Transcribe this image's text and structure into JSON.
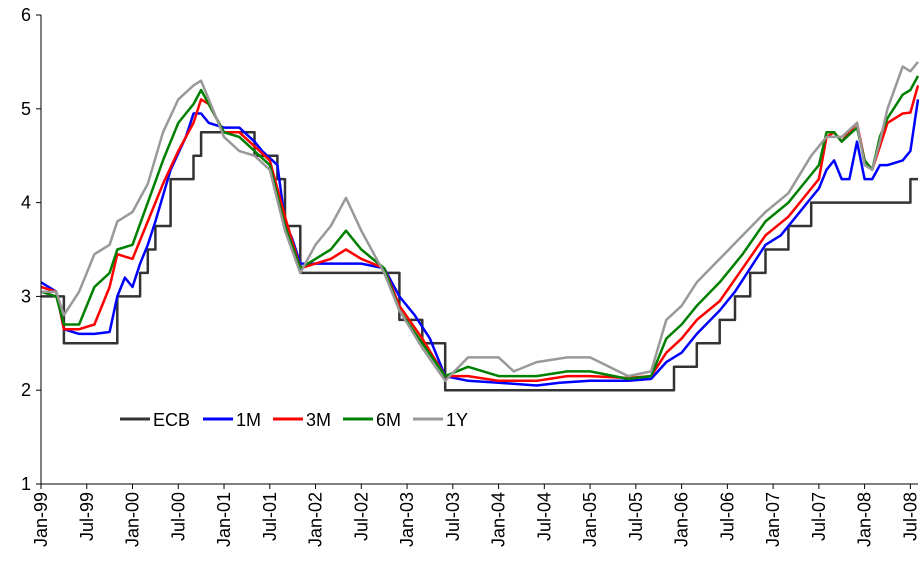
{
  "chart_data": {
    "type": "line",
    "title": "",
    "xlabel": "",
    "ylabel": "",
    "ylim": [
      1,
      6
    ],
    "yticks": [
      "1",
      "2",
      "3",
      "4",
      "5",
      "6"
    ],
    "xlim": [
      "1999-01",
      "2008-08"
    ],
    "xticks": [
      {
        "date": "1999-01",
        "label": "Jan-99"
      },
      {
        "date": "1999-07",
        "label": "Jul-99"
      },
      {
        "date": "2000-01",
        "label": "Jan-00"
      },
      {
        "date": "2000-07",
        "label": "Jul-00"
      },
      {
        "date": "2001-01",
        "label": "Jan-01"
      },
      {
        "date": "2001-07",
        "label": "Jul-01"
      },
      {
        "date": "2002-01",
        "label": "Jan-02"
      },
      {
        "date": "2002-07",
        "label": "Jul-02"
      },
      {
        "date": "2003-01",
        "label": "Jan-03"
      },
      {
        "date": "2003-07",
        "label": "Jul-03"
      },
      {
        "date": "2004-01",
        "label": "Jan-04"
      },
      {
        "date": "2004-07",
        "label": "Jul-04"
      },
      {
        "date": "2005-01",
        "label": "Jan-05"
      },
      {
        "date": "2005-07",
        "label": "Jul-05"
      },
      {
        "date": "2006-01",
        "label": "Jan-06"
      },
      {
        "date": "2006-07",
        "label": "Jul-06"
      },
      {
        "date": "2007-01",
        "label": "Jan-07"
      },
      {
        "date": "2007-07",
        "label": "Jul-07"
      },
      {
        "date": "2008-01",
        "label": "Jan-08"
      },
      {
        "date": "2008-07",
        "label": "Jul-08"
      }
    ],
    "grid": false,
    "legend": "lower-left, horizontal",
    "series": [
      {
        "name": "ECB",
        "color": "#333333",
        "step": true,
        "points": [
          [
            "1999-01",
            3.0
          ],
          [
            "1999-04",
            2.5
          ],
          [
            "1999-11",
            3.0
          ],
          [
            "2000-02",
            3.25
          ],
          [
            "2000-03",
            3.5
          ],
          [
            "2000-04",
            3.75
          ],
          [
            "2000-06",
            4.25
          ],
          [
            "2000-09",
            4.5
          ],
          [
            "2000-10",
            4.75
          ],
          [
            "2001-05",
            4.5
          ],
          [
            "2001-08",
            4.25
          ],
          [
            "2001-09",
            3.75
          ],
          [
            "2001-11",
            3.25
          ],
          [
            "2002-12",
            2.75
          ],
          [
            "2003-03",
            2.5
          ],
          [
            "2003-06",
            2.0
          ],
          [
            "2005-12",
            2.25
          ],
          [
            "2006-03",
            2.5
          ],
          [
            "2006-06",
            2.75
          ],
          [
            "2006-08",
            3.0
          ],
          [
            "2006-10",
            3.25
          ],
          [
            "2006-12",
            3.5
          ],
          [
            "2007-03",
            3.75
          ],
          [
            "2007-06",
            4.0
          ],
          [
            "2008-07",
            4.25
          ],
          [
            "2008-08",
            4.25
          ]
        ]
      },
      {
        "name": "1M",
        "color": "#0000ff",
        "step": false,
        "points": [
          [
            "1999-01",
            3.15
          ],
          [
            "1999-03",
            3.05
          ],
          [
            "1999-04",
            2.65
          ],
          [
            "1999-06",
            2.6
          ],
          [
            "1999-08",
            2.6
          ],
          [
            "1999-10",
            2.62
          ],
          [
            "1999-11",
            3.0
          ],
          [
            "1999-12",
            3.2
          ],
          [
            "2000-01",
            3.1
          ],
          [
            "2000-02",
            3.35
          ],
          [
            "2000-03",
            3.55
          ],
          [
            "2000-04",
            3.8
          ],
          [
            "2000-06",
            4.35
          ],
          [
            "2000-08",
            4.7
          ],
          [
            "2000-09",
            4.95
          ],
          [
            "2000-10",
            4.95
          ],
          [
            "2000-11",
            4.85
          ],
          [
            "2001-01",
            4.8
          ],
          [
            "2001-03",
            4.8
          ],
          [
            "2001-05",
            4.65
          ],
          [
            "2001-06",
            4.55
          ],
          [
            "2001-08",
            4.4
          ],
          [
            "2001-09",
            3.8
          ],
          [
            "2001-10",
            3.6
          ],
          [
            "2001-11",
            3.35
          ],
          [
            "2002-01",
            3.35
          ],
          [
            "2002-04",
            3.35
          ],
          [
            "2002-07",
            3.35
          ],
          [
            "2002-10",
            3.3
          ],
          [
            "2002-12",
            3.0
          ],
          [
            "2003-02",
            2.8
          ],
          [
            "2003-04",
            2.55
          ],
          [
            "2003-06",
            2.15
          ],
          [
            "2003-09",
            2.1
          ],
          [
            "2004-01",
            2.08
          ],
          [
            "2004-06",
            2.05
          ],
          [
            "2004-09",
            2.08
          ],
          [
            "2005-01",
            2.1
          ],
          [
            "2005-06",
            2.1
          ],
          [
            "2005-09",
            2.12
          ],
          [
            "2005-11",
            2.3
          ],
          [
            "2006-01",
            2.4
          ],
          [
            "2006-03",
            2.6
          ],
          [
            "2006-06",
            2.85
          ],
          [
            "2006-08",
            3.05
          ],
          [
            "2006-10",
            3.3
          ],
          [
            "2006-12",
            3.55
          ],
          [
            "2007-02",
            3.65
          ],
          [
            "2007-04",
            3.85
          ],
          [
            "2007-06",
            4.05
          ],
          [
            "2007-07",
            4.15
          ],
          [
            "2007-08",
            4.35
          ],
          [
            "2007-09",
            4.45
          ],
          [
            "2007-10",
            4.25
          ],
          [
            "2007-11",
            4.25
          ],
          [
            "2007-12",
            4.65
          ],
          [
            "2008-01",
            4.25
          ],
          [
            "2008-02",
            4.25
          ],
          [
            "2008-03",
            4.4
          ],
          [
            "2008-04",
            4.4
          ],
          [
            "2008-06",
            4.45
          ],
          [
            "2008-07",
            4.55
          ],
          [
            "2008-08",
            5.1
          ]
        ]
      },
      {
        "name": "3M",
        "color": "#ff0000",
        "step": false,
        "points": [
          [
            "1999-01",
            3.1
          ],
          [
            "1999-03",
            3.05
          ],
          [
            "1999-04",
            2.65
          ],
          [
            "1999-06",
            2.65
          ],
          [
            "1999-08",
            2.7
          ],
          [
            "1999-10",
            3.1
          ],
          [
            "1999-11",
            3.45
          ],
          [
            "2000-01",
            3.4
          ],
          [
            "2000-03",
            3.8
          ],
          [
            "2000-05",
            4.2
          ],
          [
            "2000-07",
            4.55
          ],
          [
            "2000-09",
            4.85
          ],
          [
            "2000-10",
            5.1
          ],
          [
            "2000-11",
            5.05
          ],
          [
            "2001-01",
            4.75
          ],
          [
            "2001-03",
            4.75
          ],
          [
            "2001-05",
            4.6
          ],
          [
            "2001-07",
            4.45
          ],
          [
            "2001-09",
            3.85
          ],
          [
            "2001-11",
            3.3
          ],
          [
            "2002-01",
            3.35
          ],
          [
            "2002-03",
            3.4
          ],
          [
            "2002-05",
            3.5
          ],
          [
            "2002-07",
            3.4
          ],
          [
            "2002-10",
            3.3
          ],
          [
            "2002-12",
            2.9
          ],
          [
            "2003-03",
            2.55
          ],
          [
            "2003-06",
            2.15
          ],
          [
            "2003-09",
            2.15
          ],
          [
            "2004-01",
            2.1
          ],
          [
            "2004-06",
            2.1
          ],
          [
            "2004-10",
            2.15
          ],
          [
            "2005-01",
            2.15
          ],
          [
            "2005-06",
            2.13
          ],
          [
            "2005-09",
            2.15
          ],
          [
            "2005-11",
            2.4
          ],
          [
            "2006-01",
            2.55
          ],
          [
            "2006-03",
            2.75
          ],
          [
            "2006-06",
            2.95
          ],
          [
            "2006-09",
            3.3
          ],
          [
            "2006-12",
            3.65
          ],
          [
            "2007-03",
            3.85
          ],
          [
            "2007-06",
            4.15
          ],
          [
            "2007-07",
            4.25
          ],
          [
            "2007-08",
            4.7
          ],
          [
            "2007-09",
            4.75
          ],
          [
            "2007-10",
            4.65
          ],
          [
            "2007-12",
            4.85
          ],
          [
            "2008-01",
            4.45
          ],
          [
            "2008-02",
            4.35
          ],
          [
            "2008-03",
            4.6
          ],
          [
            "2008-04",
            4.85
          ],
          [
            "2008-06",
            4.95
          ],
          [
            "2008-07",
            4.96
          ],
          [
            "2008-08",
            5.25
          ]
        ]
      },
      {
        "name": "6M",
        "color": "#008000",
        "step": false,
        "points": [
          [
            "1999-01",
            3.05
          ],
          [
            "1999-03",
            3.0
          ],
          [
            "1999-04",
            2.7
          ],
          [
            "1999-06",
            2.7
          ],
          [
            "1999-08",
            3.1
          ],
          [
            "1999-10",
            3.25
          ],
          [
            "1999-11",
            3.5
          ],
          [
            "2000-01",
            3.55
          ],
          [
            "2000-03",
            4.0
          ],
          [
            "2000-05",
            4.45
          ],
          [
            "2000-07",
            4.85
          ],
          [
            "2000-09",
            5.05
          ],
          [
            "2000-10",
            5.2
          ],
          [
            "2000-11",
            5.05
          ],
          [
            "2001-01",
            4.75
          ],
          [
            "2001-03",
            4.7
          ],
          [
            "2001-05",
            4.55
          ],
          [
            "2001-07",
            4.4
          ],
          [
            "2001-09",
            3.75
          ],
          [
            "2001-11",
            3.3
          ],
          [
            "2002-01",
            3.4
          ],
          [
            "2002-03",
            3.5
          ],
          [
            "2002-05",
            3.7
          ],
          [
            "2002-07",
            3.5
          ],
          [
            "2002-10",
            3.3
          ],
          [
            "2002-12",
            2.85
          ],
          [
            "2003-03",
            2.5
          ],
          [
            "2003-06",
            2.15
          ],
          [
            "2003-09",
            2.25
          ],
          [
            "2004-01",
            2.15
          ],
          [
            "2004-06",
            2.15
          ],
          [
            "2004-10",
            2.2
          ],
          [
            "2005-01",
            2.2
          ],
          [
            "2005-06",
            2.12
          ],
          [
            "2005-09",
            2.15
          ],
          [
            "2005-11",
            2.55
          ],
          [
            "2006-01",
            2.7
          ],
          [
            "2006-03",
            2.9
          ],
          [
            "2006-06",
            3.15
          ],
          [
            "2006-09",
            3.45
          ],
          [
            "2006-12",
            3.8
          ],
          [
            "2007-03",
            4.0
          ],
          [
            "2007-06",
            4.3
          ],
          [
            "2007-07",
            4.4
          ],
          [
            "2007-08",
            4.75
          ],
          [
            "2007-09",
            4.75
          ],
          [
            "2007-10",
            4.65
          ],
          [
            "2007-12",
            4.8
          ],
          [
            "2008-01",
            4.45
          ],
          [
            "2008-02",
            4.35
          ],
          [
            "2008-03",
            4.7
          ],
          [
            "2008-04",
            4.9
          ],
          [
            "2008-06",
            5.15
          ],
          [
            "2008-07",
            5.2
          ],
          [
            "2008-08",
            5.35
          ]
        ]
      },
      {
        "name": "1Y",
        "color": "#999999",
        "step": false,
        "points": [
          [
            "1999-01",
            3.05
          ],
          [
            "1999-03",
            3.05
          ],
          [
            "1999-04",
            2.8
          ],
          [
            "1999-06",
            3.05
          ],
          [
            "1999-08",
            3.45
          ],
          [
            "1999-10",
            3.55
          ],
          [
            "1999-11",
            3.8
          ],
          [
            "2000-01",
            3.9
          ],
          [
            "2000-03",
            4.2
          ],
          [
            "2000-05",
            4.75
          ],
          [
            "2000-07",
            5.1
          ],
          [
            "2000-09",
            5.25
          ],
          [
            "2000-10",
            5.3
          ],
          [
            "2000-11",
            5.1
          ],
          [
            "2001-01",
            4.7
          ],
          [
            "2001-03",
            4.55
          ],
          [
            "2001-05",
            4.5
          ],
          [
            "2001-07",
            4.35
          ],
          [
            "2001-09",
            3.7
          ],
          [
            "2001-11",
            3.25
          ],
          [
            "2002-01",
            3.55
          ],
          [
            "2002-03",
            3.75
          ],
          [
            "2002-05",
            4.05
          ],
          [
            "2002-07",
            3.7
          ],
          [
            "2002-10",
            3.25
          ],
          [
            "2002-12",
            2.85
          ],
          [
            "2003-03",
            2.45
          ],
          [
            "2003-06",
            2.1
          ],
          [
            "2003-09",
            2.35
          ],
          [
            "2004-01",
            2.35
          ],
          [
            "2004-03",
            2.2
          ],
          [
            "2004-06",
            2.3
          ],
          [
            "2004-10",
            2.35
          ],
          [
            "2005-01",
            2.35
          ],
          [
            "2005-06",
            2.15
          ],
          [
            "2005-09",
            2.2
          ],
          [
            "2005-11",
            2.75
          ],
          [
            "2006-01",
            2.9
          ],
          [
            "2006-03",
            3.15
          ],
          [
            "2006-06",
            3.4
          ],
          [
            "2006-09",
            3.65
          ],
          [
            "2006-12",
            3.9
          ],
          [
            "2007-03",
            4.1
          ],
          [
            "2007-06",
            4.5
          ],
          [
            "2007-07",
            4.6
          ],
          [
            "2007-08",
            4.7
          ],
          [
            "2007-09",
            4.7
          ],
          [
            "2007-10",
            4.7
          ],
          [
            "2007-12",
            4.85
          ],
          [
            "2008-01",
            4.4
          ],
          [
            "2008-02",
            4.35
          ],
          [
            "2008-03",
            4.65
          ],
          [
            "2008-04",
            5.0
          ],
          [
            "2008-06",
            5.45
          ],
          [
            "2008-07",
            5.4
          ],
          [
            "2008-08",
            5.5
          ]
        ]
      }
    ]
  }
}
